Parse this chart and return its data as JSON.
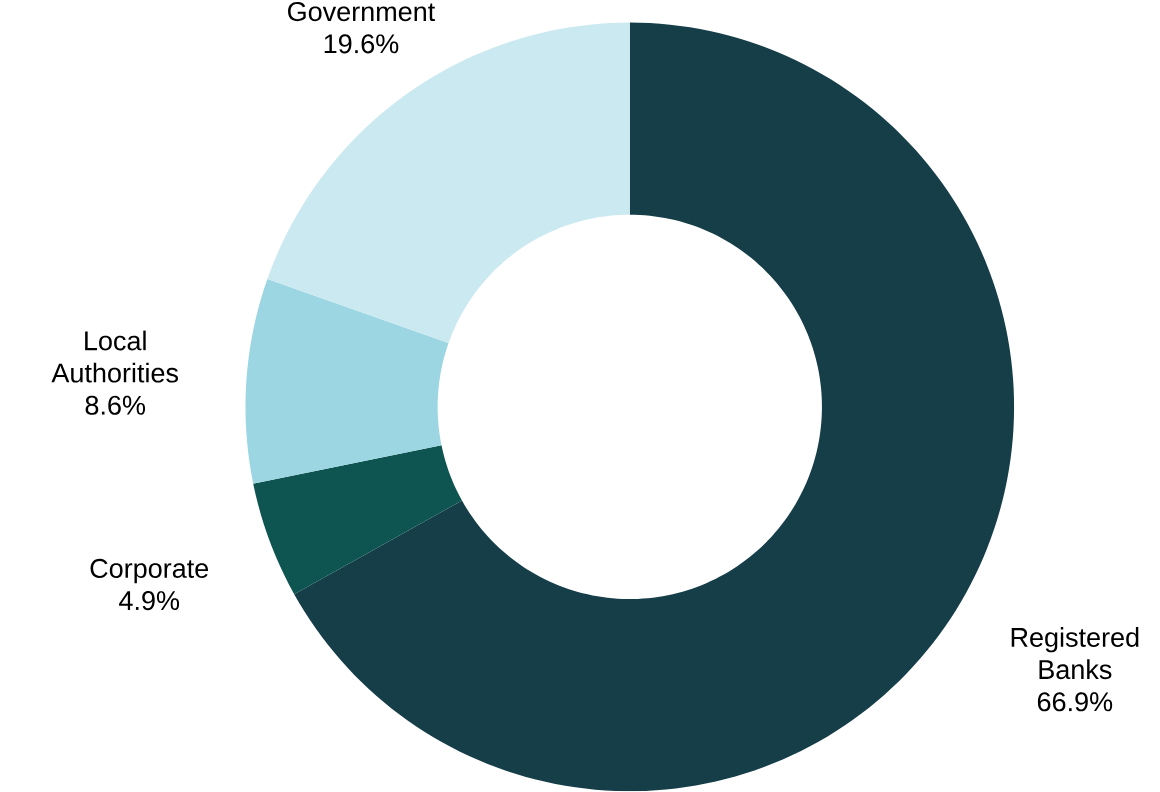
{
  "chart_data": {
    "type": "donut",
    "categories": [
      "Registered Banks",
      "Corporate",
      "Local Authorities",
      "Government"
    ],
    "values": [
      66.9,
      4.9,
      8.6,
      19.6
    ],
    "value_labels": [
      "66.9%",
      "4.9%",
      "8.6%",
      "19.6%"
    ],
    "colors": [
      "#153e48",
      "#0e5552",
      "#9dd6e3",
      "#cbe9f0"
    ]
  }
}
